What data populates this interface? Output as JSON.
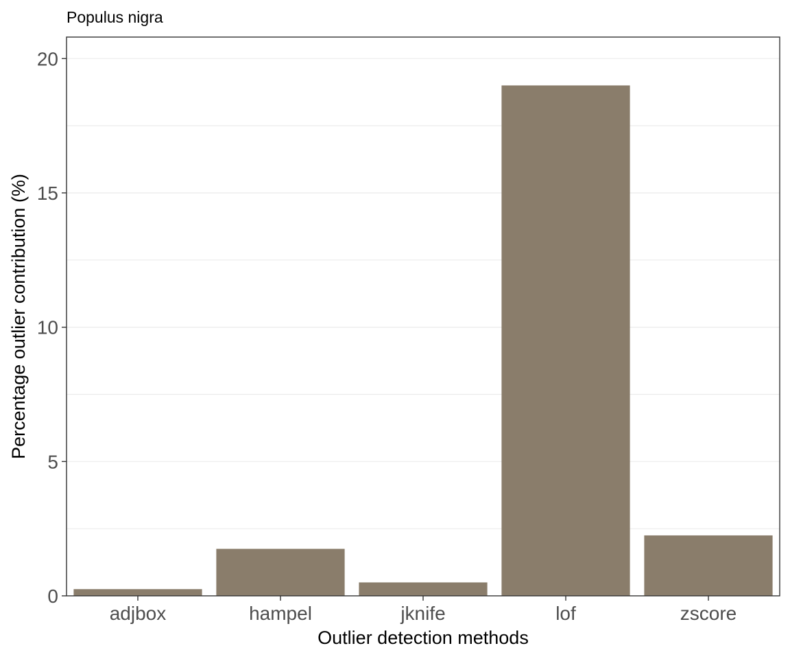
{
  "chart_data": {
    "type": "bar",
    "title": "Populus nigra",
    "xlabel": "Outlier detection methods",
    "ylabel": "Percentage outlier contribution (%)",
    "categories": [
      "adjbox",
      "hampel",
      "jknife",
      "lof",
      "zscore"
    ],
    "values": [
      0.25,
      1.75,
      0.5,
      19.0,
      2.25
    ],
    "ylim": [
      0,
      20.8
    ],
    "yticks": [
      0,
      5,
      10,
      15,
      20
    ],
    "grid": true,
    "legend": "none",
    "bar_color": "#8a7d6b"
  }
}
